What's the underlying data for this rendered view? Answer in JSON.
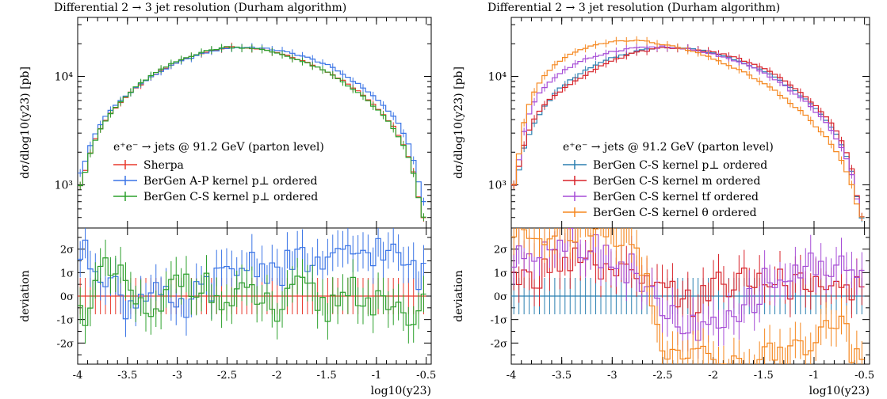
{
  "chart_data": [
    {
      "type": "line",
      "title": "Differential 2 → 3 jet resolution (Durham algorithm)",
      "ylabel": "dσ/dlog10(y23) [pb]",
      "xlabel": "log10(y23)",
      "x_ticks": [
        "-4",
        "-3.5",
        "-3",
        "-2.5",
        "-2",
        "-1.5",
        "-1",
        "-0.5"
      ],
      "xlim": [
        -4,
        -0.45
      ],
      "y_scale": "log",
      "ylim": [
        400,
        35000
      ],
      "y_ticks": [
        {
          "label": "10³",
          "value": 1000
        },
        {
          "label": "10⁴",
          "value": 10000
        }
      ],
      "ratio_ylabel": "deviation",
      "ratio_ylim": [
        -2.9,
        2.9
      ],
      "ratio_ticks": [
        "2σ",
        "1σ",
        "0σ",
        "-1σ",
        "-2σ"
      ],
      "annotation": "e⁺e⁻ → jets @ 91.2 GeV (parton level)",
      "legend_position": "center-left",
      "peak_x": -2.4,
      "series": [
        {
          "name": "Sherpa",
          "color": "#e8392c",
          "x": [
            -3.95,
            -3.75,
            -3.5,
            -3.25,
            -3.0,
            -2.75,
            -2.5,
            -2.25,
            -2.0,
            -1.75,
            -1.5,
            -1.25,
            -1.0,
            -0.75,
            -0.55
          ],
          "values": [
            1000,
            3600,
            6600,
            10000,
            13500,
            16500,
            18600,
            18200,
            16500,
            14000,
            11200,
            8000,
            5200,
            2600,
            500
          ]
        },
        {
          "name": "BerGen A-P kernel p⊥ ordered",
          "color": "#3a74e6",
          "x": [
            -3.95,
            -3.75,
            -3.5,
            -3.25,
            -3.0,
            -2.75,
            -2.5,
            -2.25,
            -2.0,
            -1.75,
            -1.5,
            -1.25,
            -1.0,
            -0.75,
            -0.55
          ],
          "values": [
            1300,
            3900,
            6800,
            10000,
            13300,
            16200,
            18300,
            18600,
            17500,
            15500,
            12800,
            9300,
            6200,
            3300,
            700
          ]
        },
        {
          "name": "BerGen C-S kernel p⊥ ordered",
          "color": "#2ca02c",
          "x": [
            -3.95,
            -3.75,
            -3.5,
            -3.25,
            -3.0,
            -2.75,
            -2.5,
            -2.25,
            -2.0,
            -1.75,
            -1.5,
            -1.25,
            -1.0,
            -0.75,
            -0.55
          ],
          "values": [
            1000,
            3500,
            6700,
            10300,
            13800,
            16800,
            18700,
            18300,
            16500,
            13800,
            11000,
            7800,
            5000,
            2500,
            500
          ]
        }
      ],
      "deviations": [
        {
          "name": "Sherpa",
          "values": [
            0,
            0,
            0,
            0,
            0,
            0,
            0,
            0,
            0,
            0,
            0,
            0,
            0,
            0,
            0
          ]
        },
        {
          "name": "BerGen A-P kernel p⊥ ordered",
          "values": [
            1.8,
            1.2,
            -0.5,
            0.6,
            -1.0,
            0.3,
            0.8,
            1.5,
            1.0,
            1.6,
            1.2,
            1.8,
            2.0,
            1.5,
            0.8
          ]
        },
        {
          "name": "BerGen C-S kernel p⊥ ordered",
          "values": [
            -0.8,
            1.0,
            0.5,
            -1.4,
            0.9,
            0.5,
            -0.5,
            0.2,
            -0.8,
            0.4,
            -0.6,
            0.5,
            -0.4,
            -1.0,
            -0.5
          ]
        }
      ]
    },
    {
      "type": "line",
      "title": "Differential 2 → 3 jet resolution (Durham algorithm)",
      "ylabel": "dσ/dlog10(y23) [pb]",
      "xlabel": "log10(y23)",
      "x_ticks": [
        "-4",
        "-3.5",
        "-3",
        "-2.5",
        "-2",
        "-1.5",
        "-1",
        "-0.5"
      ],
      "xlim": [
        -4,
        -0.45
      ],
      "y_scale": "log",
      "ylim": [
        400,
        35000
      ],
      "y_ticks": [
        {
          "label": "10³",
          "value": 1000
        },
        {
          "label": "10⁴",
          "value": 10000
        }
      ],
      "ratio_ylabel": "deviation",
      "ratio_ylim": [
        -2.9,
        2.9
      ],
      "ratio_ticks": [
        "2σ",
        "1σ",
        "0σ",
        "-1σ",
        "-2σ"
      ],
      "annotation": "e⁺e⁻ → jets @ 91.2 GeV (parton level)",
      "legend_position": "center-right",
      "series": [
        {
          "name": "BerGen C-S kernel p⊥ ordered",
          "color": "#2a7fb0",
          "x": [
            -3.95,
            -3.75,
            -3.5,
            -3.25,
            -3.0,
            -2.75,
            -2.5,
            -2.25,
            -2.0,
            -1.75,
            -1.5,
            -1.25,
            -1.0,
            -0.75,
            -0.55
          ],
          "values": [
            1000,
            4000,
            8000,
            11500,
            14800,
            17200,
            18700,
            18200,
            16500,
            14000,
            11200,
            8000,
            5200,
            2600,
            500
          ]
        },
        {
          "name": "BerGen C-S kernel m ordered",
          "color": "#d8232a",
          "x": [
            -3.95,
            -3.75,
            -3.5,
            -3.25,
            -3.0,
            -2.75,
            -2.5,
            -2.25,
            -2.0,
            -1.75,
            -1.5,
            -1.25,
            -1.0,
            -0.75,
            -0.55
          ],
          "values": [
            1000,
            4500,
            7500,
            10500,
            13800,
            16800,
            18300,
            18000,
            16800,
            14600,
            11800,
            8500,
            5500,
            2800,
            500
          ]
        },
        {
          "name": "BerGen C-S kernel tf ordered",
          "color": "#a64cd6",
          "x": [
            -3.95,
            -3.75,
            -3.5,
            -3.25,
            -3.0,
            -2.75,
            -2.5,
            -2.25,
            -2.0,
            -1.75,
            -1.5,
            -1.25,
            -1.0,
            -0.75,
            -0.55
          ],
          "values": [
            1000,
            6500,
            11000,
            14500,
            17000,
            18500,
            18800,
            17800,
            16000,
            13500,
            10800,
            7600,
            4900,
            2400,
            500
          ]
        },
        {
          "name": "BerGen C-S kernel θ ordered",
          "color": "#f5871f",
          "x": [
            -3.95,
            -3.75,
            -3.5,
            -3.25,
            -3.0,
            -2.75,
            -2.5,
            -2.25,
            -2.0,
            -1.75,
            -1.5,
            -1.25,
            -1.0,
            -0.75,
            -0.55
          ],
          "values": [
            1000,
            8000,
            14500,
            18500,
            21000,
            21500,
            19800,
            17500,
            14500,
            11500,
            8600,
            5800,
            3600,
            1800,
            500
          ]
        }
      ],
      "deviations": [
        {
          "name": "BerGen C-S kernel p⊥ ordered",
          "values": [
            0,
            0,
            0,
            0,
            0,
            0,
            0,
            0,
            0,
            0,
            0,
            0,
            0,
            0,
            0
          ]
        },
        {
          "name": "BerGen C-S kernel m ordered",
          "values": [
            0.5,
            0.8,
            1.7,
            1.3,
            0.9,
            0.6,
            0.2,
            -0.4,
            0.3,
            0.8,
            0.6,
            0.5,
            0.2,
            0.3,
            0.4
          ]
        },
        {
          "name": "BerGen C-S kernel tf ordered",
          "values": [
            1.5,
            2.2,
            2.5,
            2.2,
            1.6,
            1.0,
            -0.8,
            -1.3,
            -1.6,
            -0.9,
            0.5,
            0.9,
            1.3,
            1.3,
            0.9
          ]
        },
        {
          "name": "BerGen C-S kernel θ ordered",
          "values": [
            2.8,
            2.8,
            2.8,
            2.8,
            2.8,
            2.0,
            -1.8,
            -2.8,
            -2.8,
            -2.8,
            -2.8,
            -2.2,
            -2.0,
            -1.4,
            -2.6
          ]
        }
      ]
    }
  ]
}
